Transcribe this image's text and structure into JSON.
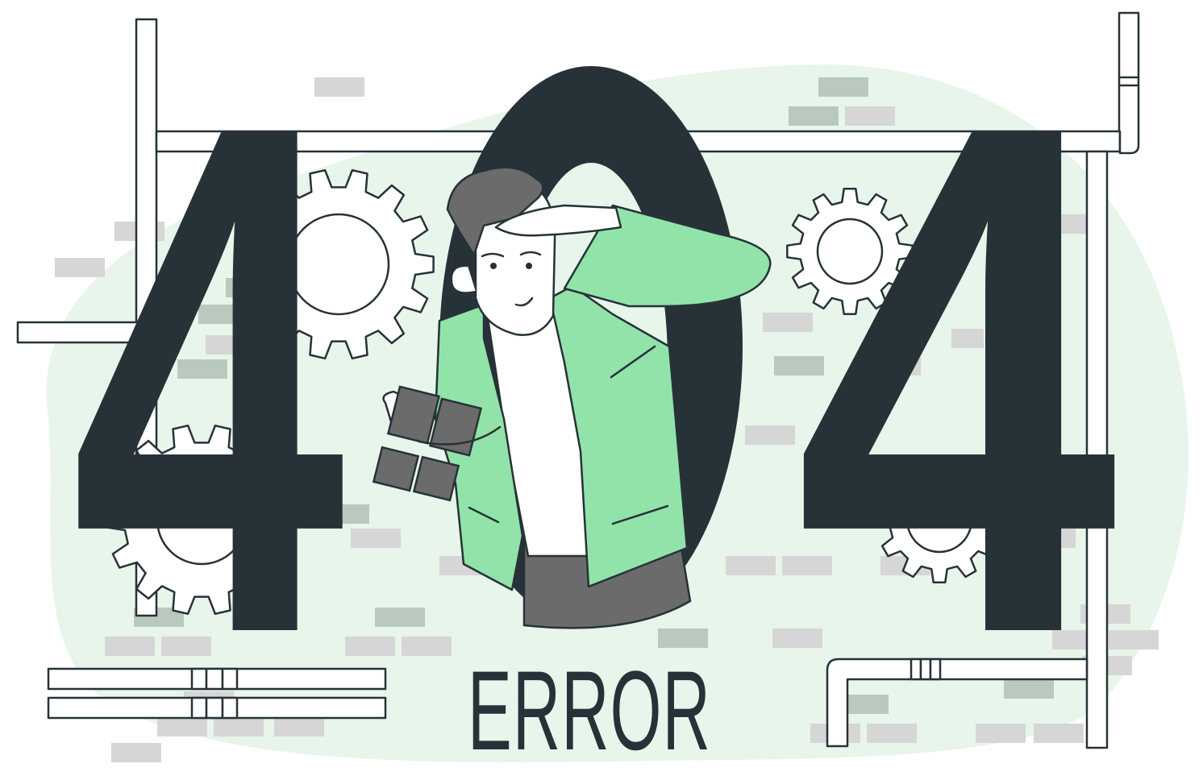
{
  "illustration": {
    "digits": [
      "4",
      "0",
      "4"
    ],
    "caption": "ERROR"
  },
  "colors": {
    "background_blob": "#e8f5ea",
    "brick_green": "#b9c9bd",
    "brick_grey": "#d6d6d6",
    "dark": "#263238",
    "jacket_green": "#92e3a9",
    "pants_grey": "#6b6b6b",
    "binoculars_grey": "#6b6b6b"
  },
  "icons": [
    "gear-icon",
    "pipe",
    "binoculars-icon",
    "person-figure"
  ]
}
